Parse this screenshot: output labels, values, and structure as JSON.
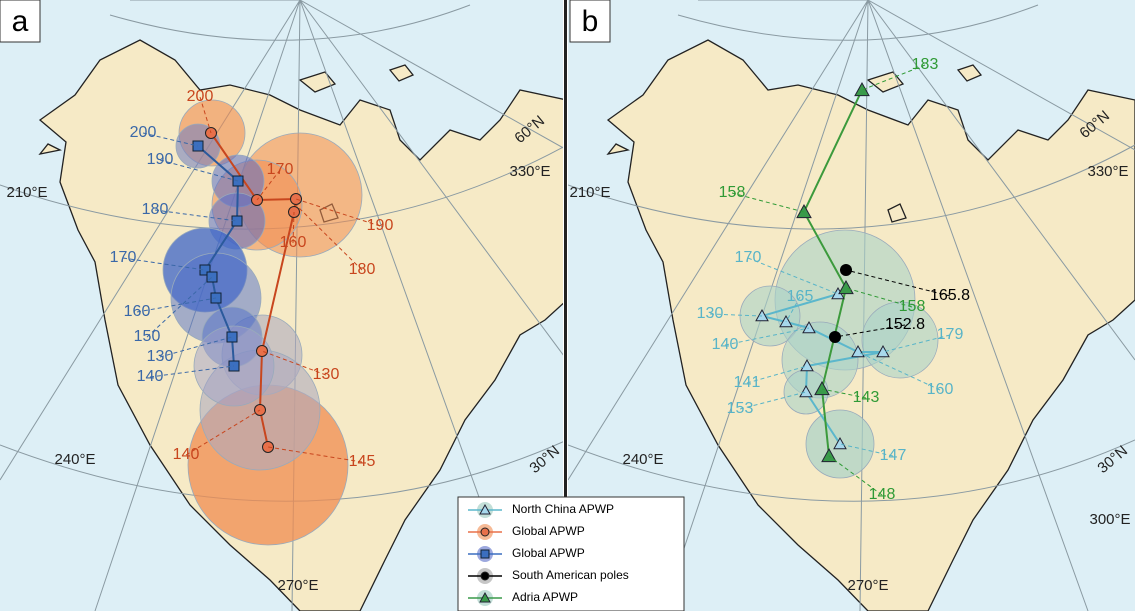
{
  "panels": [
    {
      "label": "a",
      "graticule_labels": [
        "210°E",
        "240°E",
        "270°E",
        "30°N",
        "60°N",
        "330°E"
      ],
      "blue_age_labels": [
        200,
        190,
        180,
        170,
        160,
        150,
        130,
        140
      ],
      "orange_age_labels": [
        200,
        170,
        190,
        160,
        180,
        130,
        140,
        145
      ]
    },
    {
      "label": "b",
      "graticule_labels": [
        "210°E",
        "240°E",
        "270°E",
        "30°N",
        "60°N",
        "330°E",
        "300°E"
      ],
      "adria_age_labels": [
        183,
        158,
        158,
        143,
        148
      ],
      "north_china_age_labels": [
        170,
        165,
        130,
        140,
        179,
        141,
        160,
        153,
        147
      ],
      "south_american_age_labels": [
        165.8,
        152.8
      ]
    }
  ],
  "legend": [
    "North China APWP",
    "Global APWP",
    "Global APWP",
    "South American poles",
    "Adria APWP"
  ]
}
